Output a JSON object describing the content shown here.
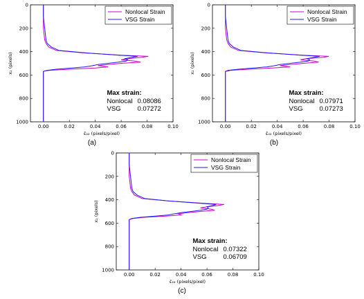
{
  "chart_data": [
    {
      "id": "a",
      "type": "line",
      "caption": "(a)",
      "xlabel": "ε̄₂₂ (pixels/pixel)",
      "ylabel": "x₂ (pixels)",
      "xlim": [
        -0.01,
        0.1
      ],
      "ylim": [
        1000,
        0
      ],
      "y_inverted": true,
      "xticks": [
        "0.00",
        "0.02",
        "0.04",
        "0.06",
        "0.08",
        "0.10"
      ],
      "yticks": [
        "0",
        "200",
        "400",
        "600",
        "800",
        "1000"
      ],
      "legend_position": "top-right",
      "annotation": {
        "title": "Max strain:",
        "rows": [
          {
            "label": "Nonlocal",
            "value": "0.08086"
          },
          {
            "label": "VSG",
            "value": "0.07272"
          }
        ]
      },
      "series": [
        {
          "name": "Nonlocal Strain",
          "color": "#cc00cc",
          "y": [
            0,
            100,
            200,
            300,
            330,
            360,
            390,
            410,
            430,
            440,
            450,
            460,
            470,
            480,
            490,
            500,
            510,
            520,
            530,
            540,
            550,
            560,
            565,
            570,
            580,
            600,
            800,
            1000
          ],
          "x": [
            0.0,
            0.0,
            0.0,
            0.001,
            0.002,
            0.004,
            0.01,
            0.03,
            0.06,
            0.0809,
            0.075,
            0.065,
            0.06,
            0.07,
            0.075,
            0.06,
            0.05,
            0.042,
            0.05,
            0.04,
            0.02,
            0.005,
            0.001,
            0.0,
            0.0,
            0.0,
            0.0,
            0.0
          ]
        },
        {
          "name": "VSG Strain",
          "color": "#1a1aff",
          "y": [
            0,
            100,
            200,
            300,
            330,
            360,
            390,
            410,
            430,
            440,
            450,
            460,
            470,
            480,
            490,
            500,
            510,
            520,
            530,
            540,
            550,
            560,
            565,
            570,
            580,
            600,
            800,
            1000
          ],
          "x": [
            0.0,
            0.0,
            0.001,
            0.002,
            0.003,
            0.006,
            0.012,
            0.032,
            0.058,
            0.0727,
            0.068,
            0.063,
            0.065,
            0.064,
            0.058,
            0.05,
            0.042,
            0.038,
            0.032,
            0.022,
            0.01,
            0.003,
            0.001,
            0.0,
            0.0,
            0.0,
            0.0,
            0.0
          ]
        }
      ]
    },
    {
      "id": "b",
      "type": "line",
      "caption": "(b)",
      "xlabel": "ε̄₂₂ (pixels/pixel)",
      "ylabel": "x₂ (pixels)",
      "xlim": [
        -0.01,
        0.1
      ],
      "ylim": [
        1000,
        0
      ],
      "y_inverted": true,
      "xticks": [
        "0.00",
        "0.02",
        "0.04",
        "0.06",
        "0.08",
        "0.10"
      ],
      "yticks": [
        "0",
        "200",
        "400",
        "600",
        "800",
        "1000"
      ],
      "legend_position": "top-right",
      "annotation": {
        "title": "Max strain:",
        "rows": [
          {
            "label": "Nonlocal",
            "value": "0.07971"
          },
          {
            "label": "VSG",
            "value": "0.07273"
          }
        ]
      },
      "series": [
        {
          "name": "Nonlocal Strain",
          "color": "#cc00cc",
          "y": [
            0,
            100,
            200,
            300,
            330,
            360,
            390,
            410,
            430,
            440,
            450,
            460,
            470,
            480,
            490,
            500,
            510,
            520,
            530,
            540,
            550,
            560,
            570,
            580,
            600,
            800,
            1000
          ],
          "x": [
            0.0,
            0.0,
            0.0,
            0.001,
            0.002,
            0.004,
            0.01,
            0.03,
            0.06,
            0.0797,
            0.075,
            0.062,
            0.058,
            0.068,
            0.072,
            0.06,
            0.05,
            0.042,
            0.05,
            0.036,
            0.018,
            0.004,
            0.0,
            0.0,
            0.0,
            0.0,
            0.0
          ]
        },
        {
          "name": "VSG Strain",
          "color": "#1a1aff",
          "y": [
            0,
            100,
            200,
            300,
            330,
            360,
            390,
            410,
            430,
            440,
            450,
            460,
            470,
            480,
            490,
            500,
            510,
            520,
            530,
            540,
            550,
            560,
            570,
            580,
            600,
            800,
            1000
          ],
          "x": [
            0.0,
            0.0,
            0.001,
            0.002,
            0.003,
            0.006,
            0.012,
            0.032,
            0.058,
            0.0727,
            0.068,
            0.063,
            0.065,
            0.064,
            0.058,
            0.05,
            0.042,
            0.038,
            0.032,
            0.022,
            0.01,
            0.002,
            0.0,
            0.0,
            0.0,
            0.0,
            0.0
          ]
        }
      ]
    },
    {
      "id": "c",
      "type": "line",
      "caption": "(c)",
      "xlabel": "ε̄₂₂ (pixels/pixel)",
      "ylabel": "x₂ (pixels)",
      "xlim": [
        -0.01,
        0.1
      ],
      "ylim": [
        1000,
        0
      ],
      "y_inverted": true,
      "xticks": [
        "0.00",
        "0.02",
        "0.04",
        "0.06",
        "0.08",
        "0.10"
      ],
      "yticks": [
        "0",
        "200",
        "400",
        "600",
        "800",
        "1000"
      ],
      "legend_position": "top-right",
      "annotation": {
        "title": "Max strain:",
        "rows": [
          {
            "label": "Nonlocal",
            "value": "0.07322"
          },
          {
            "label": "VSG",
            "value": "0.06709"
          }
        ]
      },
      "series": [
        {
          "name": "Nonlocal Strain",
          "color": "#cc00cc",
          "y": [
            0,
            100,
            200,
            300,
            330,
            360,
            390,
            410,
            430,
            440,
            450,
            460,
            470,
            480,
            490,
            500,
            510,
            520,
            530,
            540,
            550,
            560,
            570,
            580,
            600,
            800,
            1000
          ],
          "x": [
            0.0,
            0.0,
            0.0,
            0.001,
            0.002,
            0.004,
            0.01,
            0.03,
            0.058,
            0.0732,
            0.068,
            0.06,
            0.055,
            0.063,
            0.066,
            0.055,
            0.045,
            0.038,
            0.04,
            0.028,
            0.012,
            0.003,
            0.0,
            0.0,
            0.0,
            0.0,
            0.0
          ]
        },
        {
          "name": "VSG Strain",
          "color": "#1a1aff",
          "y": [
            0,
            100,
            200,
            300,
            330,
            360,
            390,
            410,
            430,
            440,
            450,
            460,
            470,
            480,
            490,
            500,
            510,
            520,
            530,
            540,
            550,
            560,
            570,
            580,
            600,
            800,
            1000
          ],
          "x": [
            0.0,
            0.0,
            0.001,
            0.002,
            0.003,
            0.006,
            0.012,
            0.03,
            0.055,
            0.0671,
            0.064,
            0.06,
            0.061,
            0.06,
            0.055,
            0.048,
            0.04,
            0.035,
            0.03,
            0.02,
            0.009,
            0.002,
            0.0,
            0.0,
            0.0,
            0.0,
            0.0
          ]
        }
      ]
    }
  ]
}
